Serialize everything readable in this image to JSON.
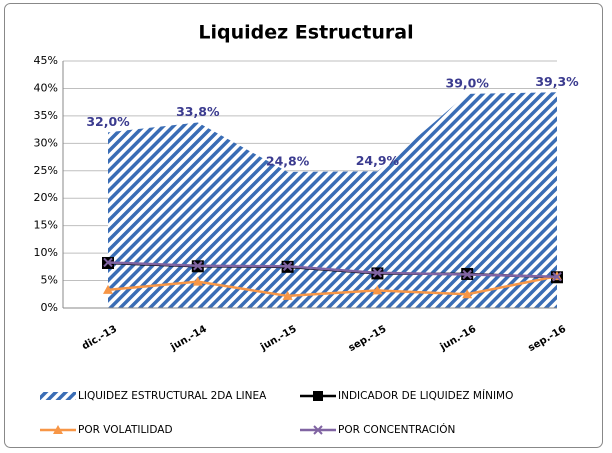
{
  "chart_data": {
    "type": "area_line",
    "title": "Liquidez Estructural",
    "categories": [
      "dic.-13",
      "jun.-14",
      "jun.-15",
      "sep.-15",
      "jun.-16",
      "sep.-16"
    ],
    "ylim": [
      0,
      45
    ],
    "yticks": [
      {
        "value": 0,
        "label": "0%"
      },
      {
        "value": 5,
        "label": "5%"
      },
      {
        "value": 10,
        "label": "10%"
      },
      {
        "value": 15,
        "label": "15%"
      },
      {
        "value": 20,
        "label": "20%"
      },
      {
        "value": 25,
        "label": "25%"
      },
      {
        "value": 30,
        "label": "30%"
      },
      {
        "value": 35,
        "label": "35%"
      },
      {
        "value": 40,
        "label": "40%"
      },
      {
        "value": 45,
        "label": "45%"
      }
    ],
    "grid": true,
    "series": [
      {
        "name": "LIQUIDEZ ESTRUCTURAL 2DA LINEA",
        "kind": "area",
        "color": "#3a6db5",
        "values": [
          32.0,
          33.8,
          24.8,
          24.9,
          39.0,
          39.3
        ],
        "value_labels": [
          "32,0%",
          "33,8%",
          "24,8%",
          "24,9%",
          "39,0%",
          "39,3%"
        ]
      },
      {
        "name": "INDICADOR DE LIQUIDEZ MÍNIMO",
        "kind": "line",
        "marker": "square",
        "color": "#000000",
        "values": [
          8.2,
          7.6,
          7.5,
          6.3,
          6.2,
          5.6
        ]
      },
      {
        "name": "POR VOLATILIDAD",
        "kind": "line",
        "marker": "triangle",
        "color": "#f79646",
        "values": [
          3.3,
          4.8,
          2.2,
          3.2,
          2.5,
          5.8
        ]
      },
      {
        "name": "POR CONCENTRACIÓN",
        "kind": "line",
        "marker": "x",
        "color": "#8064a2",
        "values": [
          8.3,
          7.7,
          7.6,
          6.4,
          6.1,
          5.7
        ]
      }
    ]
  }
}
